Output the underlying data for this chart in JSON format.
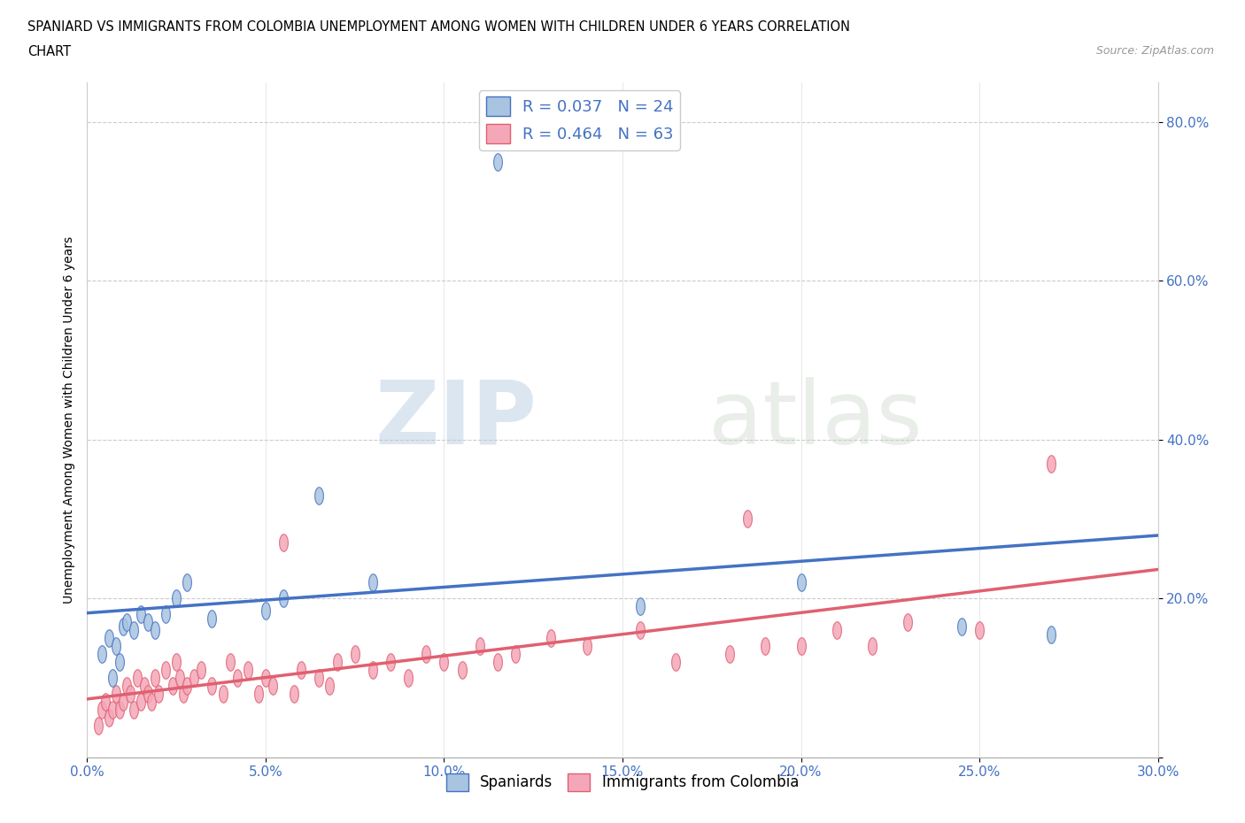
{
  "title_line1": "SPANIARD VS IMMIGRANTS FROM COLOMBIA UNEMPLOYMENT AMONG WOMEN WITH CHILDREN UNDER 6 YEARS CORRELATION",
  "title_line2": "CHART",
  "source": "Source: ZipAtlas.com",
  "ylabel": "Unemployment Among Women with Children Under 6 years",
  "xlim": [
    0.0,
    0.3
  ],
  "ylim": [
    0.0,
    0.85
  ],
  "xticks": [
    0.0,
    0.05,
    0.1,
    0.15,
    0.2,
    0.25,
    0.3
  ],
  "xticklabels": [
    "0.0%",
    "5.0%",
    "10.0%",
    "15.0%",
    "20.0%",
    "25.0%",
    "30.0%"
  ],
  "yticks": [
    0.0,
    0.2,
    0.4,
    0.6,
    0.8
  ],
  "yticklabels": [
    "",
    "20.0%",
    "40.0%",
    "60.0%",
    "80.0%"
  ],
  "spaniard_color": "#a8c4e0",
  "colombia_color": "#f4a7b9",
  "spaniard_line_color": "#4472c4",
  "colombia_line_color": "#e06070",
  "R_spaniard": 0.037,
  "N_spaniard": 24,
  "R_colombia": 0.464,
  "N_colombia": 63,
  "legend_label_spaniard": "Spaniards",
  "legend_label_colombia": "Immigrants from Colombia",
  "watermark_zip": "ZIP",
  "watermark_atlas": "atlas",
  "spaniard_x": [
    0.004,
    0.006,
    0.007,
    0.008,
    0.009,
    0.01,
    0.011,
    0.013,
    0.015,
    0.017,
    0.019,
    0.022,
    0.025,
    0.028,
    0.035,
    0.05,
    0.055,
    0.065,
    0.08,
    0.115,
    0.155,
    0.2,
    0.245,
    0.27
  ],
  "spaniard_y": [
    0.13,
    0.15,
    0.1,
    0.14,
    0.12,
    0.165,
    0.17,
    0.16,
    0.18,
    0.17,
    0.16,
    0.18,
    0.2,
    0.22,
    0.175,
    0.185,
    0.2,
    0.33,
    0.22,
    0.75,
    0.19,
    0.22,
    0.165,
    0.155
  ],
  "colombia_x": [
    0.003,
    0.004,
    0.005,
    0.006,
    0.007,
    0.008,
    0.009,
    0.01,
    0.011,
    0.012,
    0.013,
    0.014,
    0.015,
    0.016,
    0.017,
    0.018,
    0.019,
    0.02,
    0.022,
    0.024,
    0.025,
    0.026,
    0.027,
    0.028,
    0.03,
    0.032,
    0.035,
    0.038,
    0.04,
    0.042,
    0.045,
    0.048,
    0.05,
    0.052,
    0.055,
    0.058,
    0.06,
    0.065,
    0.068,
    0.07,
    0.075,
    0.08,
    0.085,
    0.09,
    0.095,
    0.1,
    0.105,
    0.11,
    0.115,
    0.12,
    0.13,
    0.14,
    0.155,
    0.165,
    0.18,
    0.185,
    0.19,
    0.2,
    0.21,
    0.22,
    0.23,
    0.25,
    0.27
  ],
  "colombia_y": [
    0.04,
    0.06,
    0.07,
    0.05,
    0.06,
    0.08,
    0.06,
    0.07,
    0.09,
    0.08,
    0.06,
    0.1,
    0.07,
    0.09,
    0.08,
    0.07,
    0.1,
    0.08,
    0.11,
    0.09,
    0.12,
    0.1,
    0.08,
    0.09,
    0.1,
    0.11,
    0.09,
    0.08,
    0.12,
    0.1,
    0.11,
    0.08,
    0.1,
    0.09,
    0.27,
    0.08,
    0.11,
    0.1,
    0.09,
    0.12,
    0.13,
    0.11,
    0.12,
    0.1,
    0.13,
    0.12,
    0.11,
    0.14,
    0.12,
    0.13,
    0.15,
    0.14,
    0.16,
    0.12,
    0.13,
    0.3,
    0.14,
    0.14,
    0.16,
    0.14,
    0.17,
    0.16,
    0.37
  ]
}
